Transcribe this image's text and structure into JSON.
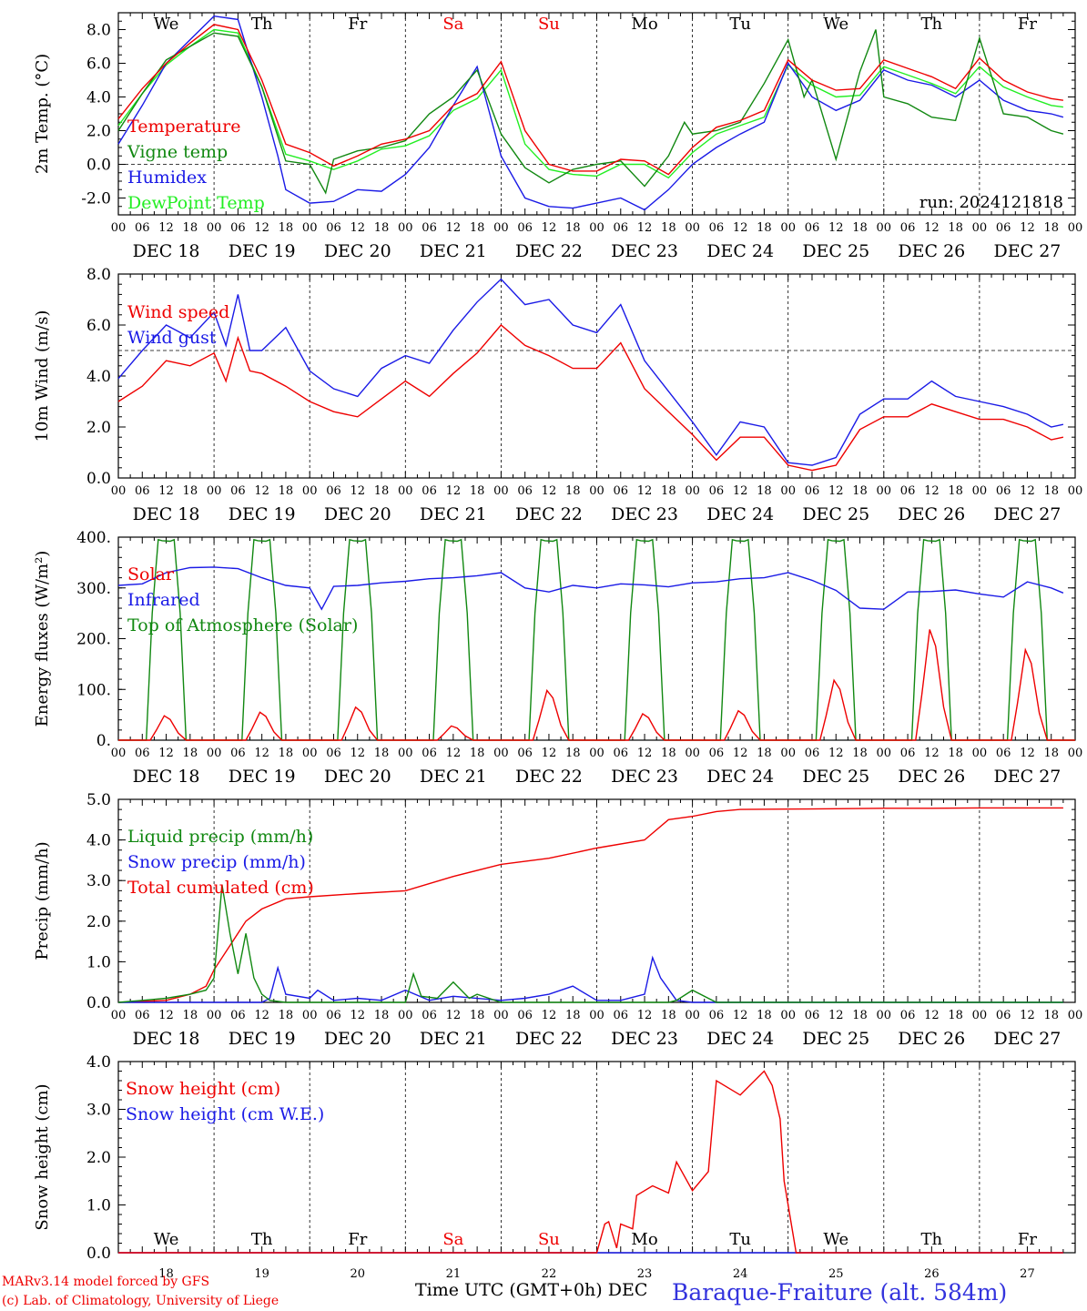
{
  "colors": {
    "red": "#ee0000",
    "green": "#118811",
    "blue": "#1a1ae6",
    "lime": "#22ee22",
    "title_blue": "#3333dd"
  },
  "hour_ticks": [
    "00",
    "06",
    "12",
    "18"
  ],
  "weekday_labels": [
    "We",
    "Th",
    "Fr",
    "Sa",
    "Su",
    "Mo",
    "Tu",
    "We",
    "Th",
    "Fr"
  ],
  "weekday_colors": [
    "#000",
    "#000",
    "#000",
    "#ee0000",
    "#ee0000",
    "#000",
    "#000",
    "#000",
    "#000",
    "#000"
  ],
  "date_labels": [
    "DEC 18",
    "DEC 19",
    "DEC 20",
    "DEC 21",
    "DEC 22",
    "DEC 23",
    "DEC 24",
    "DEC 25",
    "DEC 26",
    "DEC 27"
  ],
  "day_numbers": [
    "18",
    "19",
    "20",
    "21",
    "22",
    "23",
    "24",
    "25",
    "26",
    "27"
  ],
  "footer": {
    "credit_1": "MARv3.14 model forced by GFS",
    "credit_2": "(c) Lab. of Climatology, University of Liege",
    "axis_title": "Time UTC (GMT+0h) DEC",
    "station": "Baraque-Fraiture (alt. 584m)"
  },
  "chart_data": [
    {
      "type": "line",
      "ylabel": "2m Temp. (°C)",
      "ylim": [
        -3,
        9
      ],
      "yticks": [
        "-2.0",
        "0.0",
        "2.0",
        "4.0",
        "6.0",
        "8.0"
      ],
      "ytick_values": [
        -2,
        0,
        2,
        4,
        6,
        8
      ],
      "hline": 0,
      "annotation": "run: 2024121818",
      "x_unit": "hours since DEC 18 00 UTC",
      "series": [
        {
          "name": "Temperature",
          "color": "red",
          "x": [
            0,
            6,
            12,
            18,
            24,
            30,
            36,
            42,
            48,
            54,
            60,
            66,
            72,
            78,
            84,
            90,
            96,
            102,
            108,
            114,
            120,
            126,
            132,
            138,
            144,
            150,
            156,
            162,
            168,
            174,
            180,
            186,
            192,
            198,
            204,
            210,
            216,
            222,
            228,
            234,
            237
          ],
          "y": [
            2.7,
            4.5,
            6.0,
            7.2,
            8.3,
            8.0,
            5.0,
            1.2,
            0.7,
            -0.1,
            0.5,
            1.2,
            1.5,
            2.0,
            3.5,
            4.2,
            6.1,
            2.0,
            0.0,
            -0.4,
            -0.4,
            0.3,
            0.2,
            -0.6,
            1.0,
            2.2,
            2.6,
            3.2,
            6.2,
            5.0,
            4.4,
            4.5,
            6.2,
            5.7,
            5.2,
            4.5,
            6.3,
            5.0,
            4.3,
            3.9,
            3.8
          ]
        },
        {
          "name": "Vigne temp",
          "color": "green",
          "x": [
            0,
            6,
            12,
            18,
            24,
            30,
            36,
            42,
            48,
            52,
            54,
            60,
            66,
            72,
            78,
            84,
            90,
            96,
            102,
            108,
            114,
            120,
            126,
            132,
            138,
            142,
            144,
            150,
            156,
            162,
            168,
            172,
            174,
            180,
            186,
            190,
            192,
            198,
            204,
            210,
            216,
            222,
            228,
            234,
            237
          ],
          "y": [
            2.0,
            4.2,
            6.2,
            7.0,
            7.8,
            7.6,
            4.6,
            0.2,
            0.0,
            -1.7,
            0.3,
            0.8,
            1.0,
            1.4,
            3.0,
            4.0,
            5.6,
            1.8,
            -0.2,
            -1.1,
            -0.3,
            0.0,
            0.2,
            -1.3,
            0.5,
            2.5,
            1.8,
            2.0,
            2.5,
            4.8,
            7.4,
            4.0,
            5.0,
            0.3,
            5.5,
            8.0,
            4.0,
            3.6,
            2.8,
            2.6,
            7.5,
            3.0,
            2.8,
            2.0,
            1.8
          ]
        },
        {
          "name": "Humidex",
          "color": "blue",
          "x": [
            0,
            6,
            12,
            18,
            24,
            30,
            36,
            40,
            42,
            48,
            54,
            60,
            66,
            72,
            78,
            84,
            90,
            96,
            102,
            108,
            114,
            120,
            126,
            132,
            138,
            144,
            150,
            156,
            162,
            168,
            174,
            180,
            186,
            192,
            198,
            204,
            210,
            216,
            222,
            228,
            234,
            237
          ],
          "y": [
            1.2,
            3.5,
            6.0,
            7.4,
            8.8,
            8.6,
            4.0,
            0.5,
            -1.5,
            -2.3,
            -2.2,
            -1.5,
            -1.6,
            -0.6,
            1.0,
            3.5,
            5.8,
            0.5,
            -2.0,
            -2.5,
            -2.6,
            -2.3,
            -2.0,
            -2.7,
            -1.5,
            0.0,
            1.0,
            1.8,
            2.5,
            6.0,
            4.0,
            3.2,
            3.8,
            5.6,
            5.0,
            4.7,
            4.0,
            5.0,
            3.8,
            3.2,
            3.0,
            2.8
          ]
        },
        {
          "name": "DewPoint Temp",
          "color": "lime",
          "x": [
            0,
            6,
            12,
            18,
            24,
            30,
            36,
            42,
            48,
            54,
            60,
            66,
            72,
            78,
            84,
            90,
            96,
            102,
            108,
            114,
            120,
            126,
            132,
            138,
            144,
            150,
            156,
            162,
            168,
            174,
            180,
            186,
            192,
            198,
            204,
            210,
            216,
            222,
            228,
            234,
            237
          ],
          "y": [
            2.3,
            4.2,
            5.9,
            7.0,
            8.0,
            7.8,
            4.6,
            0.6,
            0.2,
            -0.3,
            0.2,
            0.9,
            1.1,
            1.7,
            3.2,
            3.9,
            5.6,
            1.2,
            -0.3,
            -0.6,
            -0.7,
            0.0,
            0.0,
            -0.8,
            0.7,
            1.8,
            2.3,
            2.8,
            5.9,
            4.7,
            4.0,
            4.1,
            5.8,
            5.3,
            4.8,
            4.2,
            5.8,
            4.6,
            4.0,
            3.5,
            3.4
          ]
        }
      ]
    },
    {
      "type": "line",
      "ylabel": "10m Wind (m/s)",
      "ylim": [
        0,
        8
      ],
      "yticks": [
        "0.0",
        "2.0",
        "4.0",
        "6.0",
        "8.0"
      ],
      "ytick_values": [
        0,
        2,
        4,
        6,
        8
      ],
      "hline": 5,
      "series": [
        {
          "name": "Wind speed",
          "color": "red",
          "x": [
            0,
            6,
            12,
            18,
            24,
            27,
            30,
            33,
            36,
            42,
            48,
            54,
            60,
            66,
            72,
            78,
            84,
            90,
            96,
            102,
            108,
            114,
            120,
            126,
            132,
            138,
            144,
            150,
            156,
            162,
            168,
            174,
            180,
            186,
            192,
            198,
            204,
            210,
            216,
            222,
            228,
            234,
            237
          ],
          "y": [
            3.0,
            3.6,
            4.6,
            4.4,
            4.9,
            3.8,
            5.5,
            4.2,
            4.1,
            3.6,
            3.0,
            2.6,
            2.4,
            3.1,
            3.8,
            3.2,
            4.1,
            4.9,
            6.0,
            5.2,
            4.8,
            4.3,
            4.3,
            5.3,
            3.5,
            2.6,
            1.7,
            0.7,
            1.6,
            1.6,
            0.5,
            0.3,
            0.5,
            1.9,
            2.4,
            2.4,
            2.9,
            2.6,
            2.3,
            2.3,
            2.0,
            1.5,
            1.6
          ]
        },
        {
          "name": "Wind gust",
          "color": "blue",
          "x": [
            0,
            6,
            12,
            18,
            24,
            27,
            30,
            33,
            36,
            42,
            48,
            54,
            60,
            66,
            72,
            78,
            84,
            90,
            96,
            102,
            108,
            114,
            120,
            126,
            132,
            138,
            144,
            150,
            156,
            162,
            168,
            174,
            180,
            186,
            192,
            198,
            204,
            210,
            216,
            222,
            228,
            234,
            237
          ],
          "y": [
            3.9,
            5.0,
            6.0,
            5.5,
            6.5,
            5.2,
            7.2,
            5.0,
            5.0,
            5.9,
            4.2,
            3.5,
            3.2,
            4.3,
            4.8,
            4.5,
            5.8,
            6.9,
            7.8,
            6.8,
            7.0,
            6.0,
            5.7,
            6.8,
            4.6,
            3.4,
            2.2,
            0.9,
            2.2,
            2.0,
            0.6,
            0.5,
            0.8,
            2.5,
            3.1,
            3.1,
            3.8,
            3.2,
            3.0,
            2.8,
            2.5,
            2.0,
            2.1
          ]
        }
      ]
    },
    {
      "type": "line",
      "ylabel": "Energy fluxes (W/m²)",
      "ylim": [
        0,
        400
      ],
      "yticks": [
        "0.",
        "100.",
        "200.",
        "300.",
        "400."
      ],
      "ytick_values": [
        0,
        100,
        200,
        300,
        400
      ],
      "series": [
        {
          "name": "Solar",
          "color": "red",
          "peaks": [
            48,
            55,
            65,
            28,
            98,
            52,
            58,
            118,
            218,
            178
          ]
        },
        {
          "name": "Infrared",
          "color": "blue",
          "x": [
            0,
            6,
            12,
            18,
            24,
            30,
            36,
            42,
            48,
            51,
            54,
            60,
            66,
            72,
            78,
            84,
            90,
            96,
            102,
            108,
            114,
            120,
            126,
            132,
            138,
            144,
            150,
            156,
            162,
            168,
            174,
            180,
            186,
            192,
            198,
            204,
            210,
            216,
            222,
            228,
            234,
            237
          ],
          "y": [
            305,
            308,
            330,
            340,
            341,
            338,
            320,
            305,
            300,
            258,
            303,
            305,
            310,
            313,
            318,
            320,
            324,
            330,
            300,
            292,
            305,
            300,
            308,
            306,
            302,
            310,
            312,
            318,
            320,
            330,
            315,
            295,
            260,
            258,
            292,
            293,
            296,
            288,
            282,
            312,
            300,
            290
          ]
        },
        {
          "name": "Top of Atmosphere (Solar)",
          "color": "green",
          "peak": 395
        }
      ]
    },
    {
      "type": "line",
      "ylabel": "Precip (mm/h)",
      "ylim": [
        0,
        5
      ],
      "yticks": [
        "0.0",
        "1.0",
        "2.0",
        "3.0",
        "4.0",
        "5.0"
      ],
      "ytick_values": [
        0,
        1,
        2,
        3,
        4,
        5
      ],
      "series": [
        {
          "name": "Liquid precip (mm/h)",
          "color": "green",
          "x": [
            0,
            6,
            12,
            18,
            22,
            24,
            26,
            28,
            30,
            32,
            34,
            36,
            38,
            42,
            48,
            60,
            72,
            74,
            76,
            80,
            84,
            88,
            90,
            96,
            102,
            120,
            138,
            140,
            144,
            150,
            156,
            162,
            168,
            180,
            237
          ],
          "y": [
            0,
            0.05,
            0.1,
            0.2,
            0.3,
            0.6,
            2.9,
            1.7,
            0.7,
            1.7,
            0.6,
            0.2,
            0.05,
            0,
            0,
            0,
            0,
            0.7,
            0.15,
            0.1,
            0.5,
            0.1,
            0.2,
            0,
            0,
            0,
            0,
            0.05,
            0.3,
            0,
            0,
            0,
            0,
            0,
            0
          ]
        },
        {
          "name": "Snow precip (mm/h)",
          "color": "blue",
          "x": [
            0,
            36,
            38,
            40,
            42,
            48,
            50,
            54,
            60,
            66,
            72,
            78,
            84,
            96,
            102,
            108,
            114,
            120,
            126,
            132,
            134,
            136,
            140,
            144,
            150,
            237
          ],
          "y": [
            0,
            0,
            0.1,
            0.85,
            0.2,
            0.1,
            0.3,
            0.05,
            0.1,
            0.05,
            0.3,
            0.05,
            0.15,
            0.05,
            0.1,
            0.2,
            0.4,
            0.05,
            0.05,
            0.2,
            1.1,
            0.6,
            0.05,
            0,
            0,
            0
          ]
        },
        {
          "name": "Total cumulated (cm)",
          "color": "red",
          "x": [
            0,
            12,
            18,
            22,
            24,
            28,
            32,
            36,
            42,
            48,
            60,
            72,
            84,
            96,
            108,
            120,
            132,
            138,
            144,
            150,
            156,
            168,
            180,
            192,
            204,
            216,
            228,
            237
          ],
          "y": [
            0,
            0.05,
            0.2,
            0.4,
            0.8,
            1.4,
            2.0,
            2.3,
            2.55,
            2.6,
            2.68,
            2.75,
            3.1,
            3.4,
            3.55,
            3.8,
            4.0,
            4.5,
            4.58,
            4.7,
            4.75,
            4.76,
            4.77,
            4.78,
            4.78,
            4.79,
            4.79,
            4.79
          ]
        }
      ]
    },
    {
      "type": "line",
      "ylabel": "Snow height (cm)",
      "ylim": [
        0,
        4
      ],
      "yticks": [
        "0.0",
        "1.0",
        "2.0",
        "3.0",
        "4.0"
      ],
      "ytick_values": [
        0,
        1,
        2,
        3,
        4
      ],
      "series": [
        {
          "name": "Snow height (cm)",
          "color": "red",
          "x": [
            0,
            120,
            122,
            123,
            125,
            126,
            129,
            130,
            134,
            138,
            140,
            144,
            148,
            150,
            156,
            162,
            164,
            166,
            167,
            170,
            237
          ],
          "y": [
            0,
            0,
            0.6,
            0.65,
            0.1,
            0.6,
            0.5,
            1.2,
            1.4,
            1.25,
            1.9,
            1.3,
            1.7,
            3.6,
            3.3,
            3.8,
            3.5,
            2.8,
            1.5,
            0,
            0
          ]
        },
        {
          "name": "Snow height (cm W.E.)",
          "color": "blue",
          "x": [
            0,
            237
          ],
          "y": [
            0,
            0
          ]
        }
      ]
    }
  ]
}
